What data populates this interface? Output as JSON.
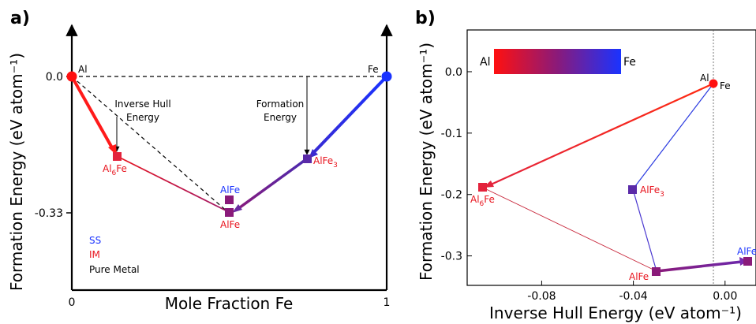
{
  "chart_data": [
    {
      "panel": "a)",
      "type": "line",
      "xlabel": "Mole Fraction Fe",
      "ylabel": "Formation Energy (eV atom⁻¹)",
      "xlim": [
        0,
        1
      ],
      "ylim": [
        -0.52,
        0.15
      ],
      "x_ticks": [
        {
          "label": "0",
          "value": 0
        },
        {
          "label": "1",
          "value": 1
        }
      ],
      "y_ticks": [
        {
          "label": "0.0",
          "value": 0.0
        },
        {
          "label": "-0.33",
          "value": -0.33
        }
      ],
      "points": [
        {
          "id": "al",
          "label": "Al",
          "x": 0.0,
          "y": 0.0,
          "color": "#ff1010",
          "shape": "circle"
        },
        {
          "id": "fe",
          "label": "Fe",
          "x": 1.0,
          "y": 0.0,
          "color": "#1a33ff",
          "shape": "circle"
        },
        {
          "id": "al6fe",
          "label": "Al",
          "sub": "6",
          "label2": "Fe",
          "x": 0.143,
          "y": -0.2,
          "color": "#e3233c",
          "shape": "square",
          "label_color": "#e8141e"
        },
        {
          "id": "alfe_im",
          "label": "AlFe",
          "x": 0.5,
          "y": -0.33,
          "color": "#8a1a7a",
          "shape": "square",
          "label_color": "#e8141e"
        },
        {
          "id": "alfe_ss",
          "label": "AlFe",
          "x": 0.5,
          "y": -0.295,
          "color": "#8a1a7a",
          "shape": "square",
          "label_color": "#1a33ff"
        },
        {
          "id": "alfe3",
          "label": "AlFe",
          "sub": "3",
          "x": 0.75,
          "y": -0.2,
          "color": "#5a2aa8",
          "shape": "square",
          "label_color": "#e8141e"
        }
      ],
      "annotations": [
        {
          "id": "inverse-hull",
          "lines": [
            "Inverse Hull",
            "Energy"
          ]
        },
        {
          "id": "formation",
          "lines": [
            "Formation",
            "Energy"
          ]
        }
      ],
      "legend": [
        {
          "label": "SS",
          "color": "#1a33ff"
        },
        {
          "label": "IM",
          "color": "#e8141e"
        },
        {
          "label": "Pure Metal",
          "color": "#000000"
        }
      ]
    },
    {
      "panel": "b)",
      "type": "scatter",
      "xlabel": "Inverse Hull Energy (eV atom⁻¹)",
      "ylabel": "Formation Energy (eV atom⁻¹)",
      "xlim": [
        -0.1125,
        0.0135
      ],
      "ylim": [
        -0.348,
        0.068
      ],
      "x_ticks": [
        {
          "label": "-0.08",
          "value": -0.08
        },
        {
          "label": "-0.04",
          "value": -0.04
        },
        {
          "label": "0.00",
          "value": 0.0
        }
      ],
      "y_ticks": [
        {
          "label": "0.0",
          "value": 0.0
        },
        {
          "label": "-0.1",
          "value": -0.1
        },
        {
          "label": "-0.2",
          "value": -0.2
        },
        {
          "label": "-0.3",
          "value": -0.3
        }
      ],
      "points": [
        {
          "id": "al",
          "label": "Al",
          "x": 0.0,
          "y": 0.0,
          "color": "#ff1010",
          "shape": "circle"
        },
        {
          "id": "fe",
          "label": "Fe",
          "x": 0.0,
          "y": 0.0,
          "color": "#ff1010",
          "shape": "circle"
        },
        {
          "id": "al6fe",
          "label": "Al",
          "sub": "6",
          "label2": "Fe",
          "x": -0.1025,
          "y": -0.197,
          "color": "#e3233c",
          "shape": "square",
          "label_color": "#e8141e"
        },
        {
          "id": "alfe3",
          "label": "AlFe",
          "sub": "3",
          "x": -0.0375,
          "y": -0.2,
          "color": "#5a2aa8",
          "shape": "square",
          "label_color": "#e8141e"
        },
        {
          "id": "alfe_im",
          "label": "AlFe",
          "x": -0.0165,
          "y": -0.326,
          "color": "#8a1a7a",
          "shape": "square",
          "label_color": "#e8141e"
        },
        {
          "id": "alfe_ss",
          "label": "AlFe",
          "x": 0.0122,
          "y": -0.312,
          "color": "#8a1a7a",
          "shape": "square",
          "label_color": "#1a33ff"
        }
      ],
      "colorbar": {
        "left_label": "Al",
        "right_label": "Fe",
        "left_color": "#ff1010",
        "right_color": "#1a33ff"
      },
      "zero_line_x": 0.0
    }
  ]
}
